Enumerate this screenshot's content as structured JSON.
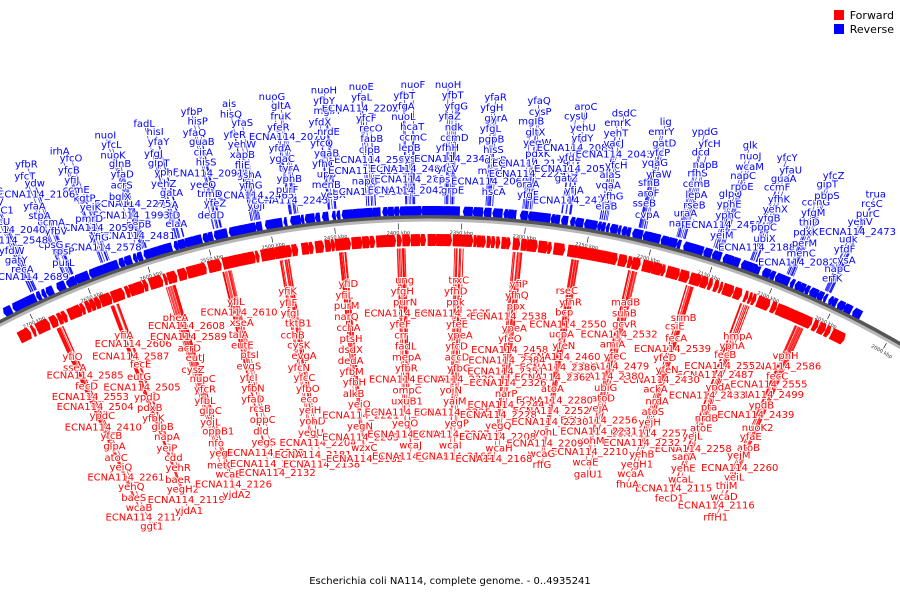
{
  "legend": [
    {
      "label": "Forward",
      "color": "#ff0000"
    },
    {
      "label": "Reverse",
      "color": "#0000ff"
    }
  ],
  "caption": "Escherichia coli NA114, complete genome. - 0..4935241",
  "colors": {
    "forward": "#ff0000",
    "reverse": "#0000ff",
    "backbone": "#8a8a8a"
  },
  "ticks": [
    "2000 kbp",
    "2050 kbp",
    "2100 kbp",
    "2150 kbp",
    "2200 kbp",
    "2250 kbp",
    "2300 kbp",
    "2350 kbp",
    "2400 kbp",
    "2450 kbp",
    "2500 kbp",
    "2550 kbp",
    "2600 kbp",
    "2650 kbp",
    "2700 kbp",
    "2750 kbp"
  ],
  "reverse_genes": [
    "ECNA114_2689",
    "purL",
    "ECNA114_2578",
    "ECNA114_2481",
    "elaA",
    "dedD",
    "yojI",
    "ECNA114_2243",
    "yegX",
    "ECNA114_2102",
    "ECNA114_2042",
    "grpE",
    "hscA",
    "yfgF",
    "ECNA114_2473",
    "elaB",
    "cvpA",
    "napH",
    "yeiM",
    "ECNA114_2188",
    "ECNA114_2082",
    "erfK",
    "recA",
    "rpsP",
    "yfiG",
    "pepB",
    "eutD",
    "yfeZ",
    "ECNA114_2465",
    "purF",
    "menB",
    "napG",
    "ECNA114_2226",
    "cpsB",
    "ECNA114_2060",
    "oraA",
    "yfjA",
    "yfhG",
    "sseB",
    "uraA",
    "ECNA114_2455",
    "ubiX",
    "menC",
    "napC",
    "gatY",
    "cpsG",
    "ECNA114_2059",
    "ECNA114_1993",
    "csrA",
    "trmD",
    "yfhG",
    "yphB",
    "upp",
    "ECNA114_2554",
    "ECNA114_2480",
    "yfcV",
    "menE",
    "ECNA114_2229",
    "gatZ",
    "vqaA",
    "aroF",
    "rseB",
    "yphC",
    "pbpC",
    "perM",
    "cysA",
    "yfdW",
    "yfbV",
    "pmrD",
    "ECNA114_2275",
    "gatA",
    "yeeQ",
    "gshA",
    "tyrA",
    "yfhC",
    "ECNA114_2551",
    "cysM",
    "ECNA114_2342",
    "dsrB",
    "ECNA114_2179",
    "ECNA114_2054",
    "alaS",
    "sfhB",
    "lepA",
    "yphE",
    "yfgB",
    "pdxK",
    "yfdF",
    "ECNA114_2548",
    "ccmA",
    "yeiK",
    "bglX",
    "yehZ",
    "ECNA114_2091",
    "fliE",
    "ygaC",
    "yqaB",
    "clpB",
    "lepB",
    "yfhH",
    "hisS",
    "pdxK",
    "yfdE",
    "yfcH",
    "yfaW",
    "ccmB",
    "glpQ",
    "yehX",
    "thiD",
    "udk",
    "ECNA114_2040",
    "stpA",
    "kgtP",
    "acrS",
    "yphF",
    "hisS",
    "xapB",
    "yfdA",
    "yfcQ",
    "fabB",
    "ccmC",
    "ccmD",
    "pgpB",
    "yegW",
    "ECNA114_2089",
    "ECNA114_2043",
    "yqaG",
    "rfhS",
    "rpoE",
    "yfhK",
    "yfgM",
    "ECNA114_2473",
    "yfcU",
    "yfaA",
    "ccmE",
    "yfaD",
    "glpT",
    "cirA",
    "yehW",
    "ECNA114_2070",
    "nrdE",
    "recO",
    "hcaT",
    "ndk",
    "yfgL",
    "gltX",
    "yfdY",
    "vacJ",
    "yfcP",
    "napB",
    "napC",
    "ccmF",
    "ccmG",
    "yehV",
    "gatC1",
    "ECNA114_2106",
    "yfiJ",
    "glnB",
    "yfgJ",
    "guaB",
    "yfeR",
    "yfeR",
    "yfdX",
    "yfcF",
    "nuoL",
    "yfaZ",
    "gyrA",
    "mgIB",
    "yehU",
    "yehT",
    "gatD",
    "dcd",
    "wcaM",
    "guaA",
    "pbpS",
    "purC",
    "yfdV",
    "ydw",
    "yfcB",
    "nuoK",
    "yfaY",
    "yfaQ",
    "yfaS",
    "fruK",
    "mglA",
    "ECNA114_2201",
    "yfgA",
    "yfgG",
    "yfgH",
    "cysP",
    "cysU",
    "emrK",
    "emrY",
    "yfcH",
    "nuoJ",
    "yfaU",
    "glpT",
    "rcsC",
    "mglC",
    "yfcT",
    "yfcO",
    "yfcL",
    "hisI",
    "hisP",
    "hisQ",
    "gltA",
    "yfbY",
    "yfaL",
    "yfbT",
    "yfbT",
    "yfaR",
    "yfaQ",
    "aroC",
    "dsdC",
    "lig",
    "ypdG",
    "glk",
    "yfcY",
    "yfcZ",
    "trua",
    "yfbS",
    "yfbR",
    "irhA",
    "nuoI",
    "fadL",
    "yfbP",
    "ais",
    "nuoG",
    "nuoH",
    "nuoE",
    "nuoF",
    "nuoH"
  ],
  "forward_genes": [
    "yfiO",
    "yfiA",
    "pheA",
    "yfiL",
    "yfiK",
    "yfiD",
    "ung",
    "trxC",
    "yfiP",
    "rseC",
    "madB",
    "srmB",
    "hmpA",
    "vphH",
    "sseA",
    "ECNA114_2606",
    "ECNA114_2608",
    "ECNA114_2610",
    "yfiF",
    "yfiL",
    "yfgH",
    "yfhD",
    "yfhQ",
    "yfhR",
    "suhB",
    "csiE",
    "yphA",
    "ECNA114_2586",
    "ECNA114_2585",
    "ECNA114_2587",
    "ECNA114_2589",
    "xseA",
    "yfgI",
    "purM",
    "purN",
    "ppk",
    "ppx",
    "bcp",
    "gcvR",
    "fecA",
    "fecB",
    "fecC",
    "fecD",
    "fecE",
    "acrD",
    "talA",
    "tktB1",
    "narQ",
    "ECNA114_2572",
    "ECNA114_2535",
    "ECNA114_2538",
    "ECNA114_2550",
    "ECNA114_2532",
    "ECNA114_2539",
    "ECNA114_2552",
    "ECNA114_2555",
    "ECNA114_2553",
    "eutG",
    "eutJ",
    "eutE",
    "cchB",
    "cchA",
    "yfeF",
    "yfeE",
    "ypeA",
    "ucpA",
    "amiA",
    "yfeD",
    "ECNA114_2487",
    "ECNA114_2499",
    "ECNA114_2504",
    "ECNA114_2505",
    "cysZ",
    "ptsI",
    "cysK",
    "ptsH",
    "crr",
    "ypeA",
    "yfeO",
    "yfeN",
    "yfeC",
    "yfeN",
    "ypdA",
    "ypdB",
    "ypdC",
    "ypdD",
    "nupC",
    "evgS",
    "evgA",
    "dsdX",
    "fadL",
    "yfcD",
    "ECNA114_2458",
    "ECNA114_2460",
    "ECNA114_2479",
    "ECNA114_2430",
    "ECNA114_2433",
    "ECNA114_2439",
    "ECNA114_2410",
    "pdxB",
    "yfcR",
    "yfcI",
    "yfcN",
    "dedA",
    "mepA",
    "accD",
    "ECNA114_2384",
    "ECNA114_2386",
    "ECNA114_2380",
    "ackA",
    "pta",
    "nuoK2",
    "yfcB",
    "yfbK",
    "yfbL",
    "yfbN",
    "yfcC",
    "yfbM",
    "yfbR",
    "yfbG",
    "ECNA114_2351",
    "ECNA114_2362",
    "ubiG",
    "nrdA",
    "nrdB",
    "yfaE",
    "glpA",
    "glpB",
    "glpC",
    "yfaD",
    "yfbO",
    "yfbH",
    "ECNA114_2336",
    "ECNA114_2320",
    "ECNA114_2326",
    "atoA",
    "atoD",
    "atoS",
    "atoE",
    "atoB",
    "atoC",
    "napA",
    "yojL",
    "rcsB",
    "eco",
    "alkB",
    "ompC",
    "yojN",
    "narP",
    "ECNA114_2280",
    "yejA",
    "yejH",
    "yejL",
    "yejM",
    "yeiQ",
    "yeiP",
    "oppB1",
    "oppC",
    "yeiH",
    "yeiO",
    "uxuB1",
    "yaiM",
    "ECNA114_2244",
    "ECNA114_2252",
    "ECNA114_2256",
    "ECNA114_2257",
    "ECNA114_2258",
    "ECNA114_2260",
    "ECNA114_2261",
    "cdd",
    "nfo",
    "dld",
    "yohD",
    "ECNA114_2221",
    "ECNA114_2223",
    "ECNA114_2225",
    "ECNA114_2228",
    "ECNA114_2230",
    "ECNA114_2231",
    "ECNA114_2232",
    "sanA",
    "yeiL",
    "yehQ",
    "yehR",
    "yegT",
    "yegS",
    "yegU",
    "yegN",
    "yegO",
    "yegP",
    "yegQ",
    "yohL",
    "yohM",
    "yehB",
    "yehE",
    "thiM",
    "baeS",
    "baeR",
    "metG",
    "ECNA114_2203",
    "ECNA114_2204",
    "ECNA114_2205",
    "ECNA114_2206",
    "ECNA114_2207",
    "ECNA114_2208",
    "ECNA114_2209",
    "ECNA114_2210",
    "yegH1",
    "wcaL",
    "wcaD",
    "wcaB",
    "yegH2",
    "wcaB",
    "ECNA114_2170",
    "ECNA114_2181",
    "wzxC",
    "wcaJ",
    "wcaI",
    "wcaH",
    "wcaG",
    "wcaE",
    "wcaA",
    "ECNA114_2115",
    "ECNA114_2116",
    "ECNA114_2117",
    "ECNA114_2119",
    "ECNA114_2126",
    "ECNA114_2132",
    "ECNA114_2138",
    "ECNA114_2162",
    "ECNA114_2165",
    "ECNA114_2166",
    "ECNA114_2168",
    "rffG",
    "galU1",
    "fhuA",
    "fecD1",
    "rffH1",
    "ggt1",
    "yjdA1",
    "yjdA2"
  ]
}
